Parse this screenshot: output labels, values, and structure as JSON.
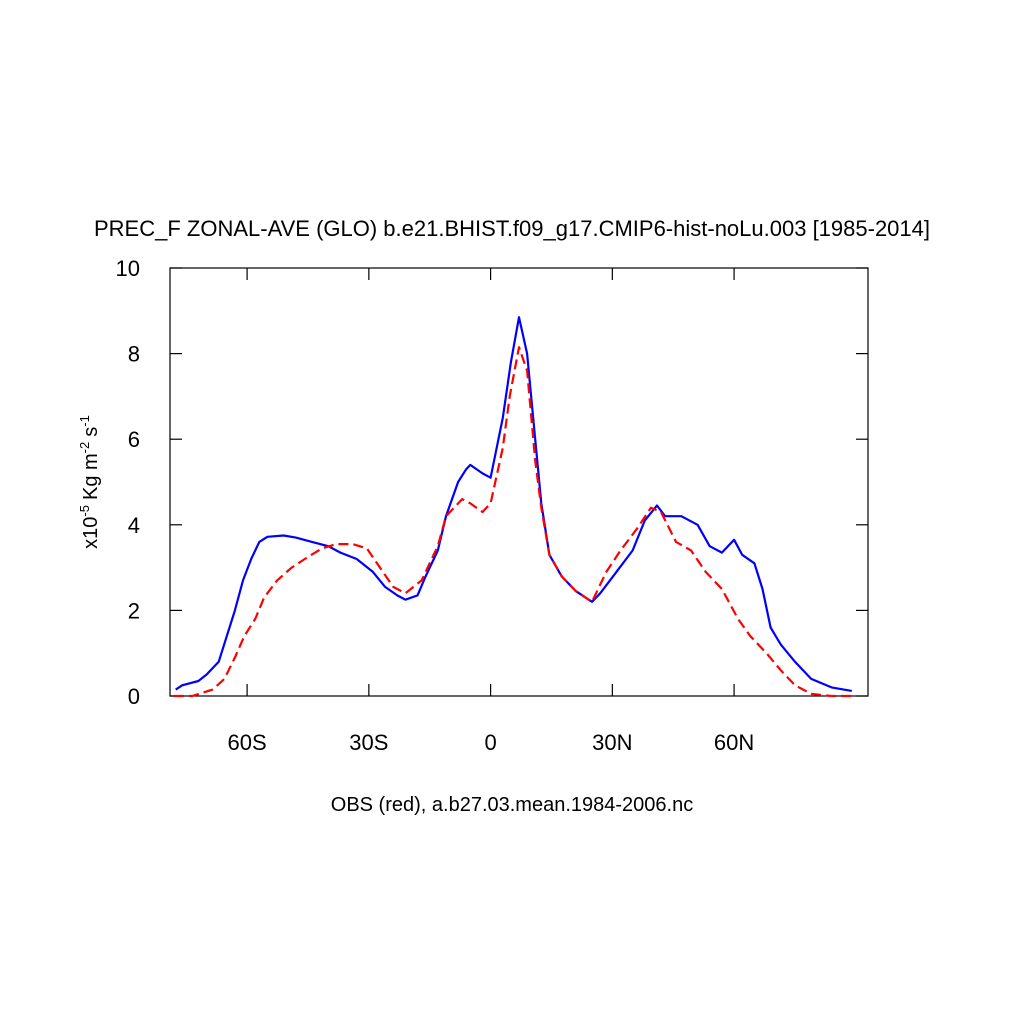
{
  "chart_data": {
    "type": "line",
    "title": "PREC_F ZONAL-AVE (GLO) b.e21.BHIST.f09_g17.CMIP6-hist-noLu.003 [1985-2014]",
    "xlabel": "OBS (red), a.b27.03.mean.1984-2006.nc",
    "ylabel_parts": [
      "x10",
      "-5",
      "Kg m",
      "-2",
      "s",
      "-1"
    ],
    "xlim": [
      -79,
      93
    ],
    "xticks": [
      {
        "value": -60,
        "label": "60S"
      },
      {
        "value": -30,
        "label": "30S"
      },
      0,
      {
        "value": 30,
        "label": "30N"
      },
      {
        "value": 60,
        "label": "60N"
      }
    ],
    "ylim": [
      0,
      10
    ],
    "yticks": [
      0,
      2,
      4,
      6,
      8,
      10
    ],
    "series": [
      {
        "color": "#0000ff",
        "dash": false,
        "x": [
          -77.6,
          -76,
          -72,
          -70,
          -67,
          -65,
          -63,
          -61,
          -59,
          -57,
          -55,
          -51,
          -48,
          -44,
          -40,
          -37,
          -33,
          -29,
          -26,
          -23,
          -21,
          -18,
          -16,
          -13,
          -11,
          -8,
          -6,
          -5,
          -2,
          0,
          3,
          5,
          7,
          9,
          11,
          12.5,
          14.5,
          17.5,
          21,
          25,
          27,
          31,
          35,
          38,
          41,
          43,
          47,
          51,
          54,
          57,
          60,
          62,
          65,
          67,
          69,
          71.5,
          75,
          79,
          84,
          89
        ],
        "values": [
          0.15,
          0.25,
          0.35,
          0.5,
          0.8,
          1.4,
          2.0,
          2.7,
          3.2,
          3.6,
          3.72,
          3.75,
          3.7,
          3.6,
          3.5,
          3.35,
          3.2,
          2.9,
          2.55,
          2.35,
          2.25,
          2.35,
          2.8,
          3.4,
          4.2,
          5.0,
          5.3,
          5.4,
          5.2,
          5.1,
          6.5,
          7.8,
          8.85,
          8.0,
          6.0,
          4.5,
          3.3,
          2.8,
          2.45,
          2.2,
          2.4,
          2.9,
          3.4,
          4.1,
          4.45,
          4.2,
          4.2,
          4.0,
          3.5,
          3.35,
          3.65,
          3.3,
          3.1,
          2.5,
          1.6,
          1.2,
          0.8,
          0.4,
          0.2,
          0.12
        ]
      },
      {
        "color": "#ff0000",
        "dash": true,
        "x": [
          -78,
          -73.5,
          -68.5,
          -65.6,
          -63,
          -60.7,
          -58,
          -55.8,
          -52.6,
          -49,
          -45,
          -41.5,
          -38,
          -34,
          -30.5,
          -28,
          -24,
          -21,
          -17,
          -13,
          -11,
          -7,
          -5,
          -2,
          0,
          3,
          4.7,
          7,
          9,
          11,
          12.5,
          14.5,
          17.5,
          21,
          25,
          28.5,
          32,
          36,
          39.5,
          42,
          45.7,
          49.4,
          53,
          57,
          61,
          64,
          68,
          71.5,
          75,
          79,
          84,
          89
        ],
        "values": [
          0.0,
          0.0,
          0.15,
          0.4,
          0.9,
          1.4,
          1.8,
          2.3,
          2.7,
          3.0,
          3.25,
          3.45,
          3.55,
          3.55,
          3.45,
          3.1,
          2.55,
          2.4,
          2.7,
          3.5,
          4.2,
          4.6,
          4.5,
          4.3,
          4.5,
          5.8,
          7.0,
          8.15,
          7.6,
          5.5,
          4.4,
          3.3,
          2.8,
          2.45,
          2.2,
          2.9,
          3.4,
          3.9,
          4.4,
          4.3,
          3.6,
          3.4,
          2.9,
          2.5,
          1.8,
          1.4,
          1.0,
          0.6,
          0.25,
          0.05,
          0.0,
          0.0
        ]
      }
    ]
  }
}
